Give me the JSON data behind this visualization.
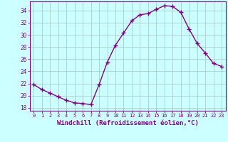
{
  "x": [
    0,
    1,
    2,
    3,
    4,
    5,
    6,
    7,
    8,
    9,
    10,
    11,
    12,
    13,
    14,
    15,
    16,
    17,
    18,
    19,
    20,
    21,
    22,
    23
  ],
  "y": [
    21.8,
    21.0,
    20.4,
    19.8,
    19.2,
    18.8,
    18.7,
    18.5,
    21.8,
    25.5,
    28.3,
    30.3,
    32.3,
    33.3,
    33.5,
    34.2,
    34.8,
    34.7,
    33.7,
    31.0,
    28.6,
    27.0,
    25.3,
    24.8
  ],
  "line_color": "#800080",
  "bg_color": "#ccffff",
  "grid_color": "#aacccc",
  "xlabel": "Windchill (Refroidissement éolien,°C)",
  "tick_color": "#800080",
  "ylim": [
    17.5,
    35.5
  ],
  "yticks": [
    18,
    20,
    22,
    24,
    26,
    28,
    30,
    32,
    34
  ],
  "xlim": [
    -0.5,
    23.5
  ],
  "xtick_fontsize": 5.0,
  "ytick_fontsize": 5.5,
  "xlabel_fontsize": 6.5
}
